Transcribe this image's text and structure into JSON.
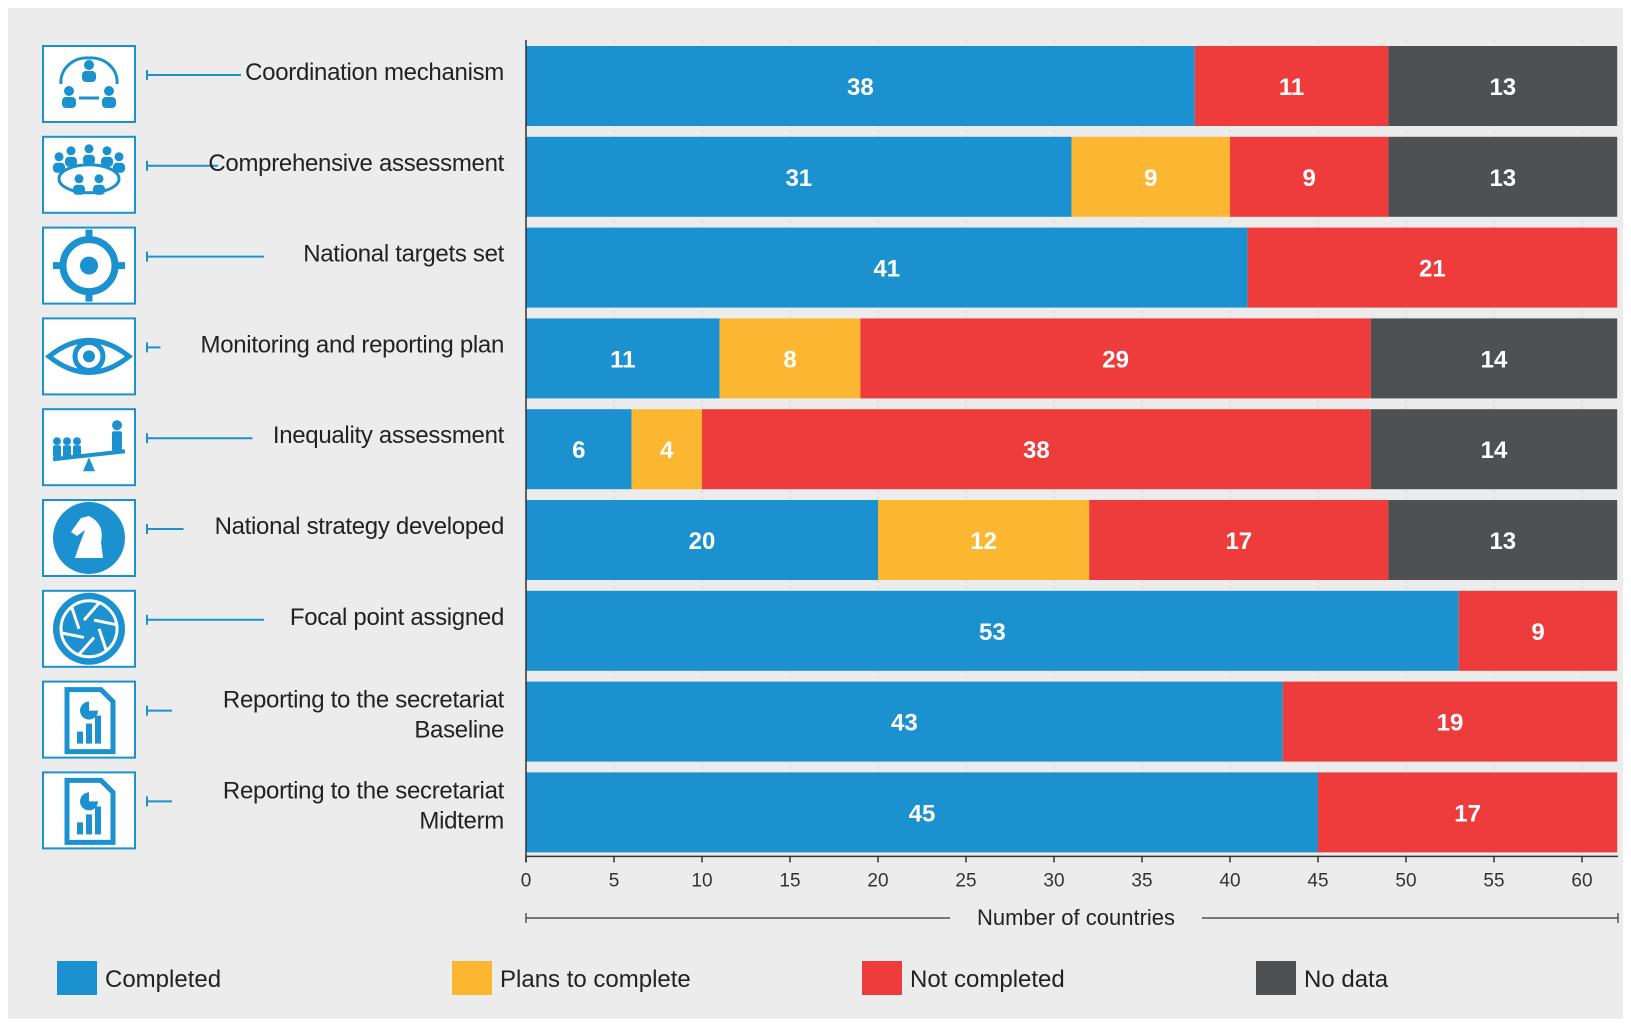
{
  "chart_data": {
    "type": "bar",
    "orientation": "horizontal",
    "stacked": true,
    "title": "",
    "xlabel": "Number of countries",
    "ylabel": "",
    "xlim": [
      0,
      62
    ],
    "xticks": [
      0,
      5,
      10,
      15,
      20,
      25,
      30,
      35,
      40,
      45,
      50,
      55,
      60
    ],
    "grid": true,
    "legend_position": "bottom",
    "categories": [
      {
        "label": "Coordination mechanism",
        "icon": "people-network-icon"
      },
      {
        "label": "Comprehensive assessment",
        "icon": "group-meeting-icon"
      },
      {
        "label": "National targets set",
        "icon": "target-icon"
      },
      {
        "label": "Monitoring and reporting plan",
        "icon": "eye-icon"
      },
      {
        "label": "Inequality assessment",
        "icon": "balance-seesaw-icon"
      },
      {
        "label": "National strategy developed",
        "icon": "chess-knight-icon"
      },
      {
        "label": "Focal point assigned",
        "icon": "camera-aperture-icon"
      },
      {
        "label": "Reporting to the secretariat Baseline",
        "label_lines": [
          "Reporting to the secretariat",
          "Baseline"
        ],
        "icon": "report-chart-icon"
      },
      {
        "label": "Reporting to the secretariat Midterm",
        "label_lines": [
          "Reporting to the secretariat",
          "Midterm"
        ],
        "icon": "report-chart-icon"
      }
    ],
    "series": [
      {
        "name": "Completed",
        "color": "#1b91d0",
        "values": [
          38,
          31,
          41,
          11,
          6,
          20,
          53,
          43,
          45
        ]
      },
      {
        "name": "Plans to complete",
        "color": "#fbb731",
        "values": [
          0,
          9,
          0,
          8,
          4,
          12,
          0,
          0,
          0
        ]
      },
      {
        "name": "Not completed",
        "color": "#ee3b3b",
        "values": [
          11,
          9,
          21,
          29,
          38,
          17,
          9,
          19,
          17
        ]
      },
      {
        "name": "No data",
        "color": "#4f5052",
        "values": [
          13,
          13,
          0,
          14,
          14,
          13,
          0,
          0,
          0
        ]
      }
    ]
  },
  "colors": {
    "background": "#ececec",
    "icon_border": "#1b91d0",
    "connector": "#1b91d0"
  }
}
